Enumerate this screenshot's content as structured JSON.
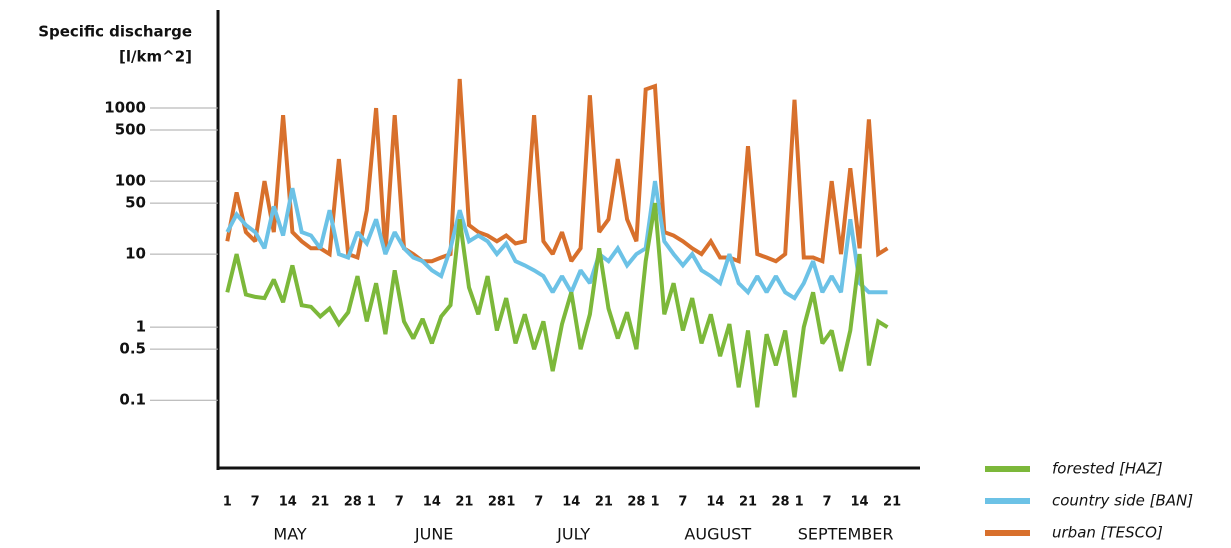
{
  "chart_data": {
    "type": "line",
    "y_title_lines": [
      "Specific discharge",
      "[l/km^2]"
    ],
    "log_y": true,
    "legend": "bottom-right",
    "ylim": [
      0.0118,
      22000
    ],
    "yticks": [
      1000,
      500,
      100,
      50,
      10,
      1,
      0.5,
      0.1
    ],
    "xlim": [
      -2,
      149
    ],
    "xticks": [
      {
        "value": 0,
        "label": "1"
      },
      {
        "value": 6,
        "label": "7"
      },
      {
        "value": 13,
        "label": "14"
      },
      {
        "value": 20,
        "label": "21"
      },
      {
        "value": 27,
        "label": "28"
      },
      {
        "value": 31,
        "label": "1"
      },
      {
        "value": 37,
        "label": "7"
      },
      {
        "value": 44,
        "label": "14"
      },
      {
        "value": 51,
        "label": "21"
      },
      {
        "value": 58,
        "label": "28"
      },
      {
        "value": 61,
        "label": "1"
      },
      {
        "value": 67,
        "label": "7"
      },
      {
        "value": 74,
        "label": "14"
      },
      {
        "value": 81,
        "label": "21"
      },
      {
        "value": 88,
        "label": "28"
      },
      {
        "value": 92,
        "label": "1"
      },
      {
        "value": 98,
        "label": "7"
      },
      {
        "value": 105,
        "label": "14"
      },
      {
        "value": 112,
        "label": "21"
      },
      {
        "value": 119,
        "label": "28"
      },
      {
        "value": 123,
        "label": "1"
      },
      {
        "value": 129,
        "label": "7"
      },
      {
        "value": 136,
        "label": "14"
      },
      {
        "value": 143,
        "label": "21"
      }
    ],
    "months": [
      {
        "label": "MAY",
        "start": 0
      },
      {
        "label": "JUNE",
        "start": 31
      },
      {
        "label": "JULY",
        "start": 61
      },
      {
        "label": "AUGUST",
        "start": 92
      },
      {
        "label": "SEPTEMBER",
        "start": 123
      }
    ],
    "x": [
      0,
      2,
      4,
      6,
      8,
      10,
      12,
      14,
      16,
      18,
      20,
      22,
      24,
      26,
      28,
      30,
      32,
      34,
      36,
      38,
      40,
      42,
      44,
      46,
      48,
      50,
      52,
      54,
      56,
      58,
      60,
      62,
      64,
      66,
      68,
      70,
      72,
      74,
      76,
      78,
      80,
      82,
      84,
      86,
      88,
      90,
      92,
      94,
      96,
      98,
      100,
      102,
      104,
      106,
      108,
      110,
      112,
      114,
      116,
      118,
      120,
      122,
      124,
      126,
      128,
      130,
      132,
      134,
      136,
      138,
      140,
      142
    ],
    "series": [
      {
        "name": "urban [TESCO]",
        "color": "#d8702c",
        "values": [
          15,
          70,
          20,
          15,
          100,
          20,
          800,
          20,
          15,
          12,
          12,
          10,
          200,
          10,
          9,
          40,
          1000,
          10,
          800,
          12,
          10,
          8,
          8,
          9,
          10,
          2500,
          25,
          20,
          18,
          15,
          18,
          14,
          15,
          800,
          15,
          10,
          20,
          8,
          12,
          1500,
          20,
          30,
          200,
          30,
          15,
          1800,
          2000,
          20,
          18,
          15,
          12,
          10,
          15,
          9,
          9,
          8,
          300,
          10,
          9,
          8,
          10,
          1300,
          9,
          9,
          8,
          100,
          10,
          150,
          12,
          700,
          10,
          12
        ]
      },
      {
        "name": "country side [BAN]",
        "color": "#6cc2e6",
        "values": [
          20,
          35,
          25,
          20,
          12,
          45,
          18,
          80,
          20,
          18,
          12,
          40,
          10,
          9,
          20,
          14,
          30,
          10,
          20,
          12,
          9,
          8,
          6,
          5,
          12,
          40,
          15,
          18,
          15,
          10,
          14,
          8,
          7,
          6,
          5,
          3,
          5,
          3,
          6,
          4,
          10,
          8,
          12,
          7,
          10,
          12,
          100,
          15,
          10,
          7,
          10,
          6,
          5,
          4,
          10,
          4,
          3,
          5,
          3,
          5,
          3,
          2.5,
          4,
          8,
          3,
          5,
          3,
          30,
          4,
          3,
          3,
          3
        ]
      },
      {
        "name": "forested [HAZ]",
        "color": "#7cb83a",
        "values": [
          3,
          10,
          2.8,
          2.6,
          2.5,
          4.5,
          2.2,
          7,
          2,
          1.9,
          1.4,
          1.8,
          1.1,
          1.6,
          5,
          1.2,
          4,
          0.8,
          6,
          1.2,
          0.7,
          1.3,
          0.6,
          1.4,
          2,
          30,
          3.5,
          1.5,
          5,
          0.9,
          2.5,
          0.6,
          1.5,
          0.5,
          1.2,
          0.25,
          1.1,
          3,
          0.5,
          1.5,
          12,
          1.8,
          0.7,
          1.6,
          0.5,
          8,
          50,
          1.5,
          4,
          0.9,
          2.5,
          0.6,
          1.5,
          0.4,
          1.1,
          0.15,
          0.9,
          0.08,
          0.8,
          0.3,
          0.9,
          0.11,
          1,
          3,
          0.6,
          0.9,
          0.25,
          0.9,
          10,
          0.3,
          1.2,
          1
        ]
      }
    ]
  }
}
